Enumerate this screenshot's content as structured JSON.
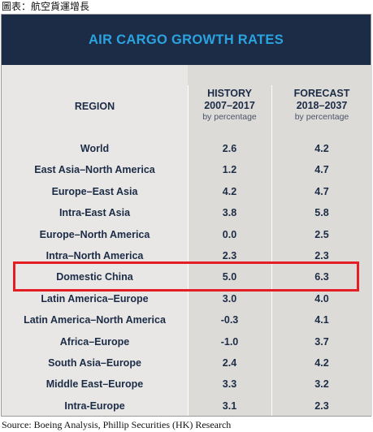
{
  "caption": "圖表：航空貨運增長",
  "source": "Source: Boeing Analysis, Phillip Securities (HK) Research",
  "colors": {
    "header_band": "#1c2c46",
    "title_text": "#2aa3e0",
    "highlight": "#e31e24",
    "table_bg": "#e8e7e5"
  },
  "chart_data": {
    "type": "table",
    "title": "AIR CARGO GROWTH RATES",
    "columns": [
      {
        "key": "region",
        "label": "REGION"
      },
      {
        "key": "history",
        "label_line1": "HISTORY",
        "label_line2": "2007–2017",
        "unit": "by percentage"
      },
      {
        "key": "forecast",
        "label_line1": "FORECAST",
        "label_line2": "2018–2037",
        "unit": "by percentage"
      }
    ],
    "rows": [
      {
        "region": "World",
        "history": "2.6",
        "forecast": "4.2"
      },
      {
        "region": "East Asia–North America",
        "history": "1.2",
        "forecast": "4.7"
      },
      {
        "region": "Europe–East Asia",
        "history": "4.2",
        "forecast": "4.7"
      },
      {
        "region": "Intra-East Asia",
        "history": "3.8",
        "forecast": "5.8"
      },
      {
        "region": "Europe–North America",
        "history": "0.0",
        "forecast": "2.5"
      },
      {
        "region": "Intra–North America",
        "history": "2.3",
        "forecast": "2.3"
      },
      {
        "region": "Domestic China",
        "history": "5.0",
        "forecast": "6.3"
      },
      {
        "region": "Latin America–Europe",
        "history": "3.0",
        "forecast": "4.0"
      },
      {
        "region": "Latin America–North America",
        "history": "-0.3",
        "forecast": "4.1"
      },
      {
        "region": "Africa–Europe",
        "history": "-1.0",
        "forecast": "3.7"
      },
      {
        "region": "South Asia–Europe",
        "history": "2.4",
        "forecast": "4.2"
      },
      {
        "region": "Middle East–Europe",
        "history": "3.3",
        "forecast": "3.2"
      },
      {
        "region": "Intra-Europe",
        "history": "3.1",
        "forecast": "2.3"
      }
    ],
    "highlighted_region": "Domestic China"
  }
}
